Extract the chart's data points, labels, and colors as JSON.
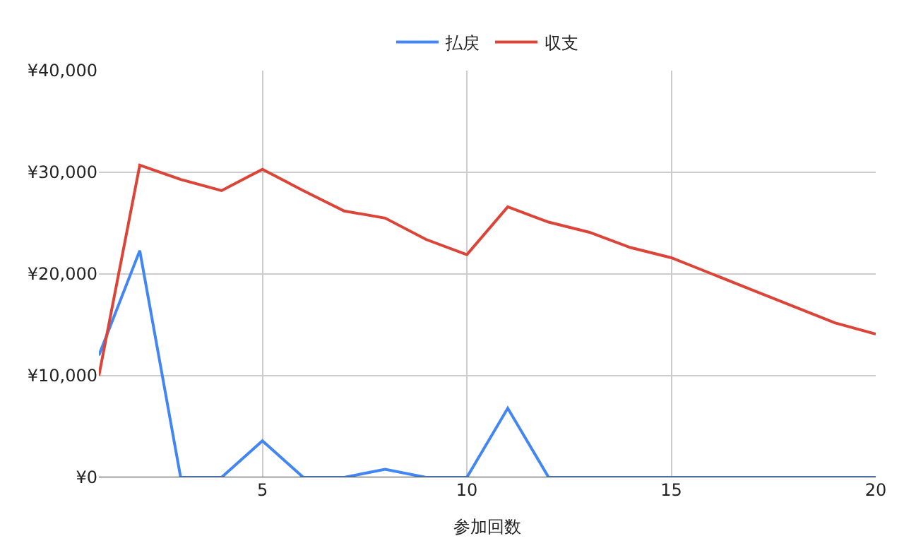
{
  "chart_data": {
    "type": "line",
    "xlabel": "参加回数",
    "x": [
      1,
      2,
      3,
      4,
      5,
      6,
      7,
      8,
      9,
      10,
      11,
      12,
      13,
      14,
      15,
      16,
      17,
      18,
      19,
      20
    ],
    "series": [
      {
        "name": "払戻",
        "color": "#4285f4",
        "values": [
          12000,
          22300,
          0,
          0,
          3600,
          0,
          0,
          800,
          0,
          0,
          6800,
          0,
          0,
          0,
          0,
          0,
          0,
          0,
          0,
          0
        ]
      },
      {
        "name": "収支",
        "color": "#db4437",
        "values": [
          10000,
          30700,
          29300,
          28200,
          30300,
          28200,
          26200,
          25500,
          23400,
          21900,
          26600,
          25100,
          24100,
          22600,
          21600,
          20000,
          18400,
          16800,
          15200,
          14100
        ]
      }
    ],
    "xlim": [
      1,
      20
    ],
    "xticks": [
      5,
      10,
      15,
      20
    ],
    "ylim": [
      0,
      40000
    ],
    "yticks": [
      {
        "value": 0,
        "label": "¥0"
      },
      {
        "value": 10000,
        "label": "¥10,000"
      },
      {
        "value": 20000,
        "label": "¥20,000"
      },
      {
        "value": 30000,
        "label": "¥30,000"
      },
      {
        "value": 40000,
        "label": "¥40,000"
      }
    ],
    "grid": true,
    "legend": "top",
    "marker": "none",
    "line_style": "solid"
  }
}
